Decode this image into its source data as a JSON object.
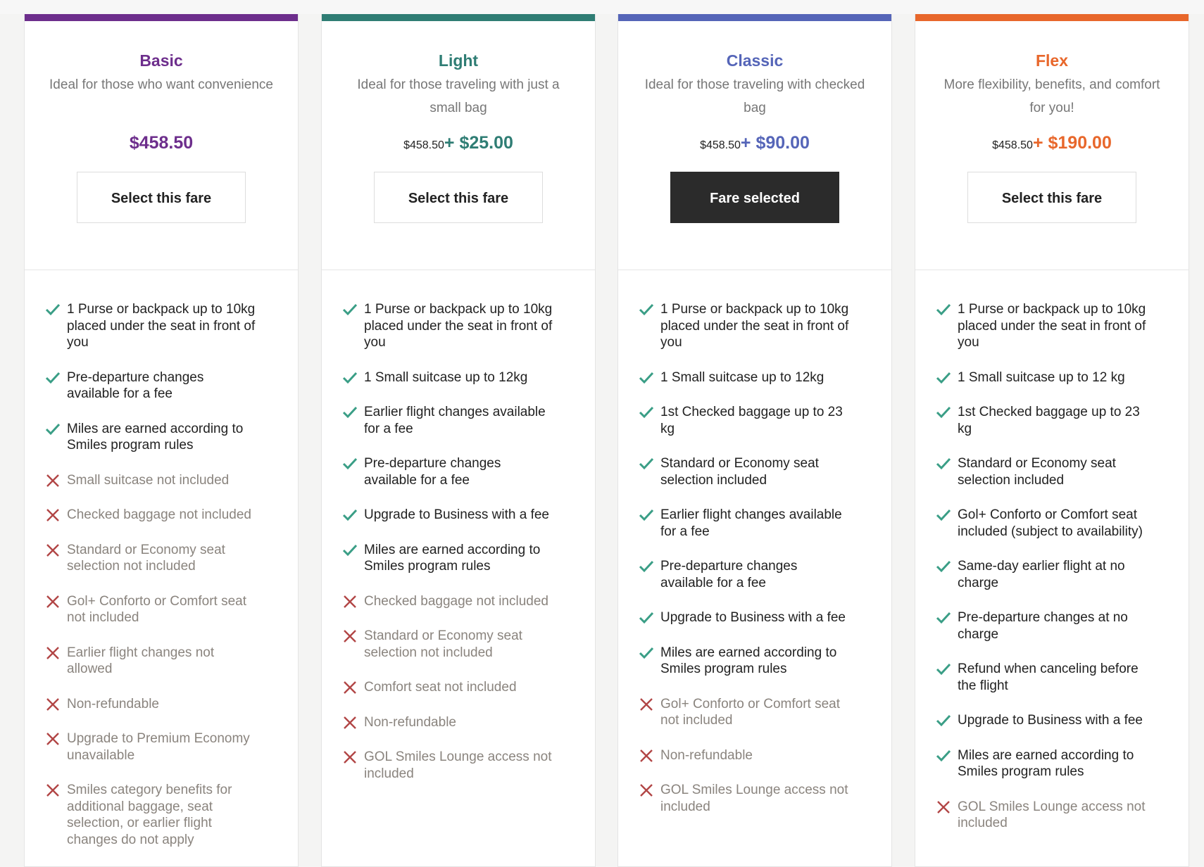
{
  "fares": [
    {
      "name": "Basic",
      "color": "#6d2e8c",
      "description": "Ideal for those who want convenience",
      "base_price": null,
      "price": "$458.50",
      "button": "Select this fare",
      "selected": false,
      "features": [
        {
          "text": "1 Purse or backpack up to 10kg placed under the seat in front of you",
          "included": true
        },
        {
          "text": "Pre-departure changes available for a fee",
          "included": true
        },
        {
          "text": "Miles are earned according to Smiles program rules",
          "included": true
        },
        {
          "text": "Small suitcase not included",
          "included": false
        },
        {
          "text": "Checked baggage not included",
          "included": false
        },
        {
          "text": "Standard or Economy seat selection not included",
          "included": false
        },
        {
          "text": "Gol+ Conforto or Comfort seat not included",
          "included": false
        },
        {
          "text": "Earlier flight changes not allowed",
          "included": false
        },
        {
          "text": "Non-refundable",
          "included": false
        },
        {
          "text": "Upgrade to Premium Economy unavailable",
          "included": false
        },
        {
          "text": "Smiles category benefits for additional baggage, seat selection, or earlier flight changes do not apply",
          "included": false
        }
      ]
    },
    {
      "name": "Light",
      "color": "#2f7d74",
      "description": "Ideal for those traveling with just a small bag",
      "base_price": "$458.50",
      "price": "+ $25.00",
      "button": "Select this fare",
      "selected": false,
      "features": [
        {
          "text": "1 Purse or backpack up to 10kg placed under the seat in front of you",
          "included": true
        },
        {
          "text": "1 Small suitcase up to 12kg",
          "included": true
        },
        {
          "text": "Earlier flight changes available for a fee",
          "included": true
        },
        {
          "text": "Pre-departure changes available for a fee",
          "included": true
        },
        {
          "text": "Upgrade to Business with a fee",
          "included": true
        },
        {
          "text": "Miles are earned according to Smiles program rules",
          "included": true
        },
        {
          "text": "Checked baggage not included",
          "included": false
        },
        {
          "text": "Standard or Economy seat selection not included",
          "included": false
        },
        {
          "text": "Comfort seat not included",
          "included": false
        },
        {
          "text": "Non-refundable",
          "included": false
        },
        {
          "text": "GOL Smiles Lounge access not included",
          "included": false
        }
      ]
    },
    {
      "name": "Classic",
      "color": "#5565b8",
      "description": "Ideal for those traveling with checked bag",
      "base_price": "$458.50",
      "price": "+ $90.00",
      "button": "Fare selected",
      "selected": true,
      "features": [
        {
          "text": "1 Purse or backpack up to 10kg placed under the seat in front of you",
          "included": true
        },
        {
          "text": "1 Small suitcase up to 12kg",
          "included": true
        },
        {
          "text": "1st Checked baggage up to 23 kg",
          "included": true
        },
        {
          "text": "Standard or Economy seat selection included",
          "included": true
        },
        {
          "text": "Earlier flight changes available for a fee",
          "included": true
        },
        {
          "text": "Pre-departure changes available for a fee",
          "included": true
        },
        {
          "text": "Upgrade to Business with a fee",
          "included": true
        },
        {
          "text": "Miles are earned according to Smiles program rules",
          "included": true
        },
        {
          "text": "Gol+ Conforto or Comfort seat not included",
          "included": false
        },
        {
          "text": "Non-refundable",
          "included": false
        },
        {
          "text": "GOL Smiles Lounge access not included",
          "included": false
        }
      ]
    },
    {
      "name": "Flex",
      "color": "#e8672b",
      "description": "More flexibility, benefits, and comfort for you!",
      "base_price": "$458.50",
      "price": "+ $190.00",
      "button": "Select this fare",
      "selected": false,
      "features": [
        {
          "text": "1 Purse or backpack up to 10kg placed under the seat in front of you",
          "included": true
        },
        {
          "text": "1 Small suitcase up to 12 kg",
          "included": true
        },
        {
          "text": "1st Checked baggage up to 23 kg",
          "included": true
        },
        {
          "text": "Standard or Economy seat selection included",
          "included": true
        },
        {
          "text": "Gol+ Conforto or Comfort seat included (subject to availability)",
          "included": true
        },
        {
          "text": "Same-day earlier flight at no charge",
          "included": true
        },
        {
          "text": "Pre-departure changes at no charge",
          "included": true
        },
        {
          "text": "Refund when canceling before the flight",
          "included": true
        },
        {
          "text": "Upgrade to Business with a fee",
          "included": true
        },
        {
          "text": "Miles are earned according to Smiles program rules",
          "included": true
        },
        {
          "text": "GOL Smiles Lounge access not included",
          "included": false
        }
      ]
    }
  ]
}
